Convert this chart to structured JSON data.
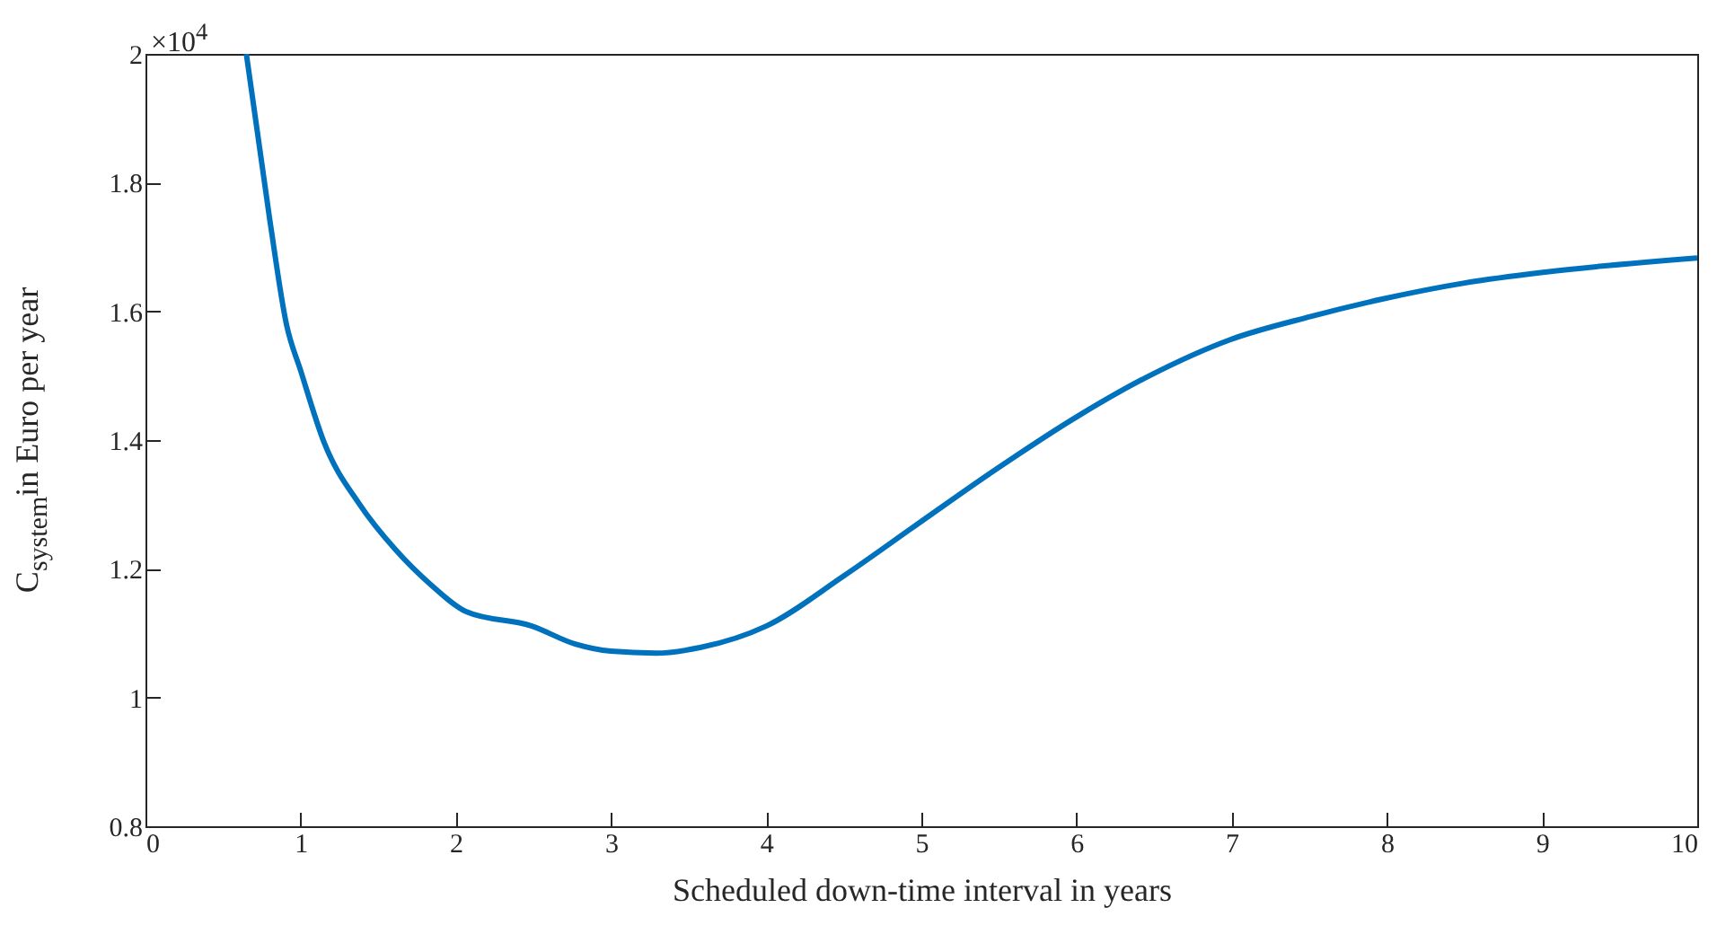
{
  "chart_data": {
    "type": "line",
    "xlabel": "Scheduled down-time interval in years",
    "ylabel": "C$_{system}$in Euro per year",
    "annotations": [
      "×10$^{4}$"
    ],
    "x": [
      0.65,
      0.8,
      0.91,
      1.0,
      1.15,
      1.38,
      1.61,
      1.84,
      2.07,
      2.49,
      2.77,
      3.0,
      3.29,
      3.58,
      4.0,
      4.5,
      4.99,
      5.49,
      5.98,
      6.47,
      6.99,
      7.51,
      7.97,
      8.5,
      9.02,
      10
    ],
    "series": [
      {
        "color": "#0072bd",
        "values": [
          2.0,
          1.744,
          1.578,
          1.508,
          1.397,
          1.3,
          1.23,
          1.175,
          1.133,
          1.111,
          1.083,
          1.072,
          1.069,
          1.078,
          1.111,
          1.189,
          1.272,
          1.356,
          1.433,
          1.5,
          1.556,
          1.592,
          1.619,
          1.644,
          1.661,
          1.683
        ]
      }
    ],
    "xlim": [
      0,
      10
    ],
    "ylim": [
      0.8,
      2.0
    ],
    "xticks": [
      0,
      1,
      2,
      3,
      4,
      5,
      6,
      7,
      8,
      9,
      10
    ],
    "yticks": [
      0.8,
      1,
      1.2,
      1.4,
      1.6,
      1.8,
      2
    ]
  }
}
